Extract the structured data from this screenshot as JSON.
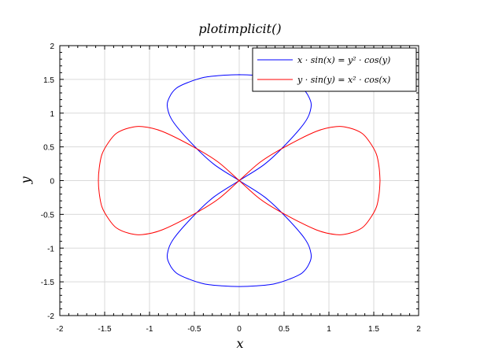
{
  "chart_data": {
    "type": "line",
    "title": "plotimplicit()",
    "xlabel": "x",
    "ylabel": "y",
    "xlim": [
      -2,
      2
    ],
    "ylim": [
      -2,
      2
    ],
    "grid": true,
    "legend_position": "top-right",
    "x_ticks": [
      "-2",
      "-1.5",
      "-1",
      "-0.5",
      "0",
      "0.5",
      "1",
      "1.5",
      "2"
    ],
    "y_ticks": [
      "-2",
      "-1.5",
      "-1",
      "-0.5",
      "0",
      "0.5",
      "1",
      "1.5",
      "2"
    ],
    "series": [
      {
        "name": "x · sin(x) = y² · cos(y)",
        "color": "#0000ff",
        "points": [
          [
            0.0,
            1.57
          ],
          [
            0.19,
            1.56
          ],
          [
            0.39,
            1.53
          ],
          [
            0.56,
            1.46
          ],
          [
            0.7,
            1.37
          ],
          [
            0.78,
            1.23
          ],
          [
            0.8,
            1.08
          ],
          [
            0.73,
            0.86
          ],
          [
            0.5,
            0.51
          ],
          [
            0.28,
            0.24
          ],
          [
            0.0,
            0.0
          ],
          [
            -0.28,
            -0.24
          ],
          [
            -0.5,
            -0.51
          ],
          [
            -0.73,
            -0.86
          ],
          [
            -0.8,
            -1.08
          ],
          [
            -0.78,
            -1.23
          ],
          [
            -0.7,
            -1.37
          ],
          [
            -0.56,
            -1.46
          ],
          [
            -0.39,
            -1.53
          ],
          [
            -0.19,
            -1.56
          ],
          [
            0.0,
            -1.57
          ],
          [
            0.19,
            -1.56
          ],
          [
            0.39,
            -1.53
          ],
          [
            0.56,
            -1.46
          ],
          [
            0.7,
            -1.37
          ],
          [
            0.78,
            -1.23
          ],
          [
            0.8,
            -1.08
          ],
          [
            0.73,
            -0.86
          ],
          [
            0.5,
            -0.51
          ],
          [
            0.28,
            -0.24
          ],
          [
            0.0,
            0.0
          ],
          [
            -0.28,
            0.24
          ],
          [
            -0.5,
            0.51
          ],
          [
            -0.73,
            0.86
          ],
          [
            -0.8,
            1.08
          ],
          [
            -0.78,
            1.23
          ],
          [
            -0.7,
            1.37
          ],
          [
            -0.56,
            1.46
          ],
          [
            -0.39,
            1.53
          ],
          [
            -0.19,
            1.56
          ],
          [
            0.0,
            1.57
          ]
        ]
      },
      {
        "name": "y · sin(y) = x² · cos(x)",
        "color": "#ff0000",
        "points": [
          [
            1.57,
            0.0
          ],
          [
            1.56,
            0.19
          ],
          [
            1.53,
            0.39
          ],
          [
            1.46,
            0.56
          ],
          [
            1.37,
            0.7
          ],
          [
            1.23,
            0.78
          ],
          [
            1.08,
            0.8
          ],
          [
            0.86,
            0.73
          ],
          [
            0.51,
            0.5
          ],
          [
            0.24,
            0.28
          ],
          [
            0.0,
            0.0
          ],
          [
            -0.24,
            -0.28
          ],
          [
            -0.51,
            -0.5
          ],
          [
            -0.86,
            -0.73
          ],
          [
            -1.08,
            -0.8
          ],
          [
            -1.23,
            -0.78
          ],
          [
            -1.37,
            -0.7
          ],
          [
            -1.46,
            -0.56
          ],
          [
            -1.53,
            -0.39
          ],
          [
            -1.56,
            -0.19
          ],
          [
            -1.57,
            0.0
          ],
          [
            -1.56,
            0.19
          ],
          [
            -1.53,
            0.39
          ],
          [
            -1.46,
            0.56
          ],
          [
            -1.37,
            0.7
          ],
          [
            -1.23,
            0.78
          ],
          [
            -1.08,
            0.8
          ],
          [
            -0.86,
            0.73
          ],
          [
            -0.51,
            0.5
          ],
          [
            -0.24,
            0.28
          ],
          [
            0.0,
            0.0
          ],
          [
            0.24,
            -0.28
          ],
          [
            0.51,
            -0.5
          ],
          [
            0.86,
            -0.73
          ],
          [
            1.08,
            -0.8
          ],
          [
            1.23,
            -0.78
          ],
          [
            1.37,
            -0.7
          ],
          [
            1.46,
            -0.56
          ],
          [
            1.53,
            -0.39
          ],
          [
            1.56,
            -0.19
          ],
          [
            1.57,
            0.0
          ]
        ]
      }
    ]
  }
}
